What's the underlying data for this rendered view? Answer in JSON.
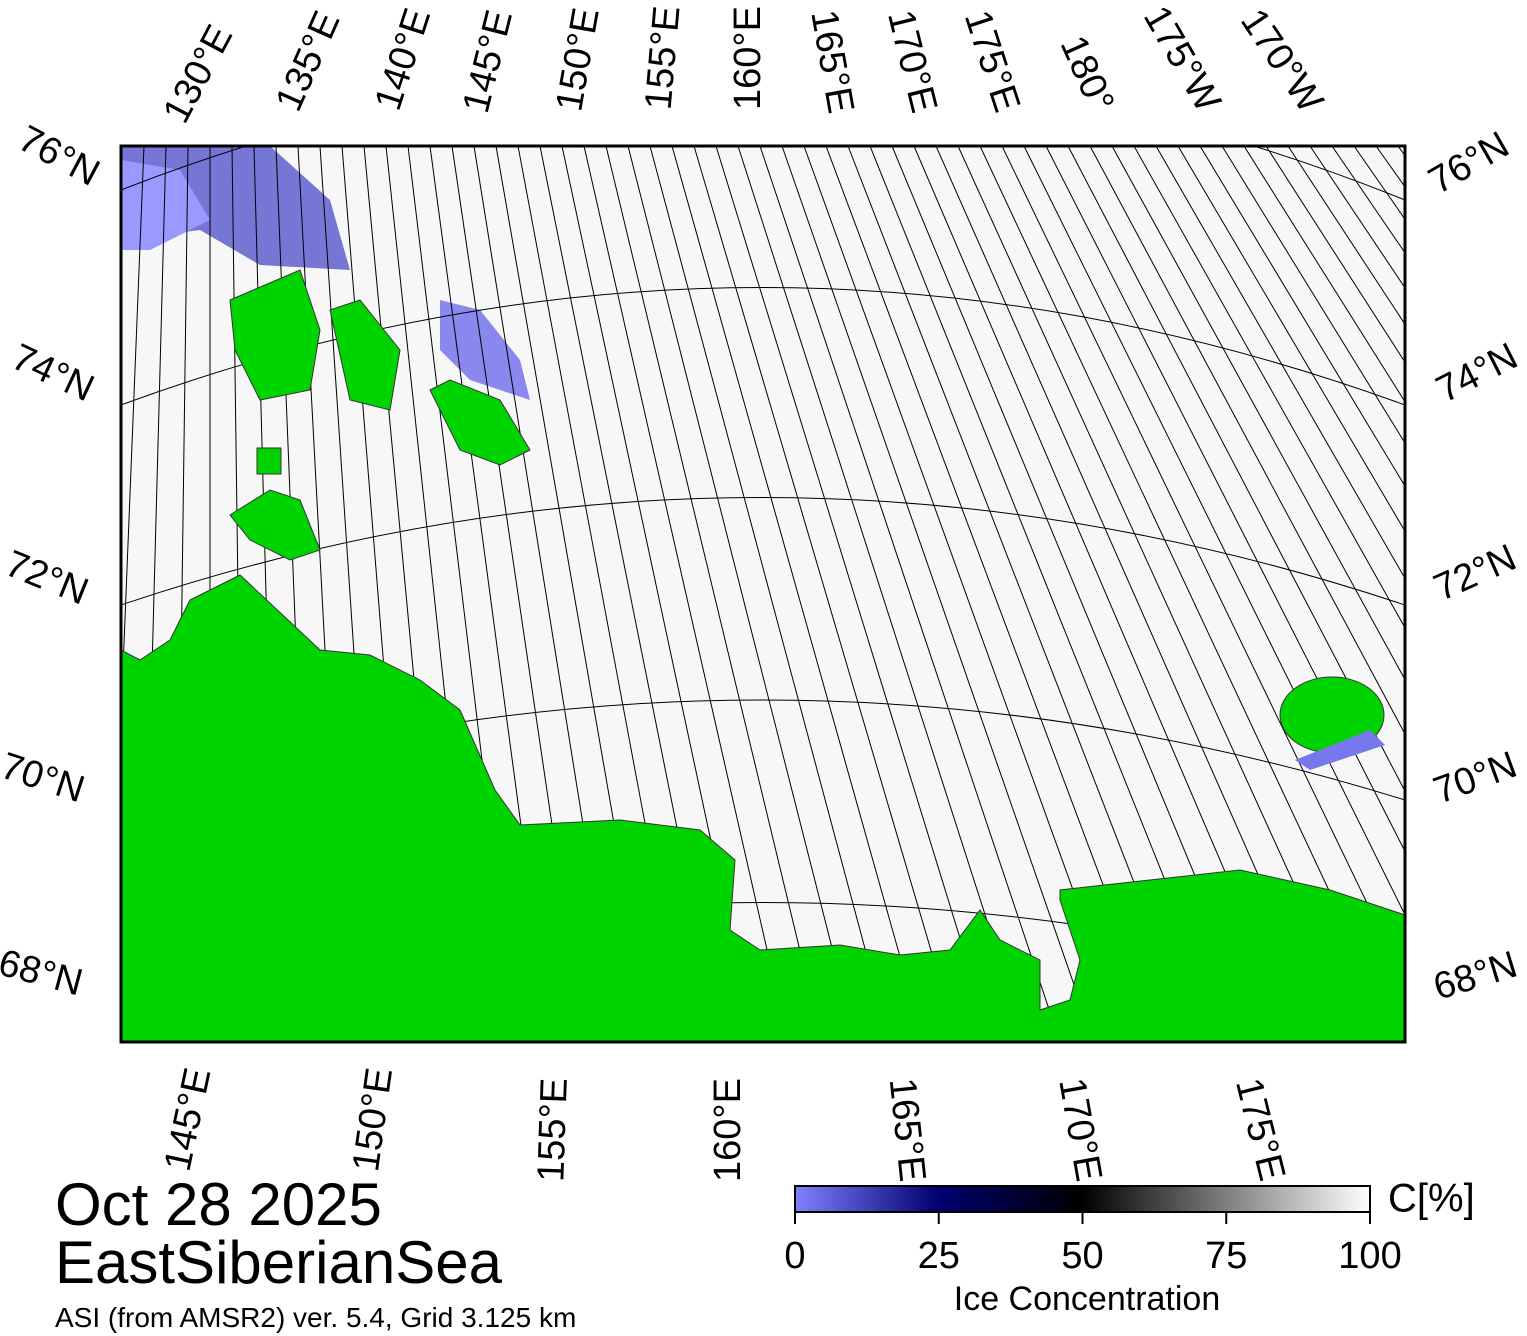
{
  "map": {
    "top_labels": [
      "130°E",
      "135°E",
      "140°E",
      "145°E",
      "150°E",
      "155°E",
      "160°E",
      "165°E",
      "170°E",
      "175°E",
      "180°",
      "175°W",
      "170°W"
    ],
    "bottom_labels": [
      "145°E",
      "150°E",
      "155°E",
      "160°E",
      "165°E",
      "170°E",
      "175°E"
    ],
    "left_labels": [
      "76°N",
      "74°N",
      "72°N",
      "70°N",
      "68°N"
    ],
    "right_labels": [
      "76°N",
      "74°N",
      "72°N",
      "70°N",
      "68°N"
    ]
  },
  "title": {
    "date": "Oct 28 2025",
    "region": "EastSiberianSea",
    "source": "ASI (from AMSR2) ver. 5.4,  Grid 3.125 km"
  },
  "colorbar": {
    "label": "Ice Concentration",
    "unit": "C[%]",
    "range": [
      0,
      100
    ],
    "ticks": [
      0,
      25,
      50,
      75,
      100
    ]
  }
}
